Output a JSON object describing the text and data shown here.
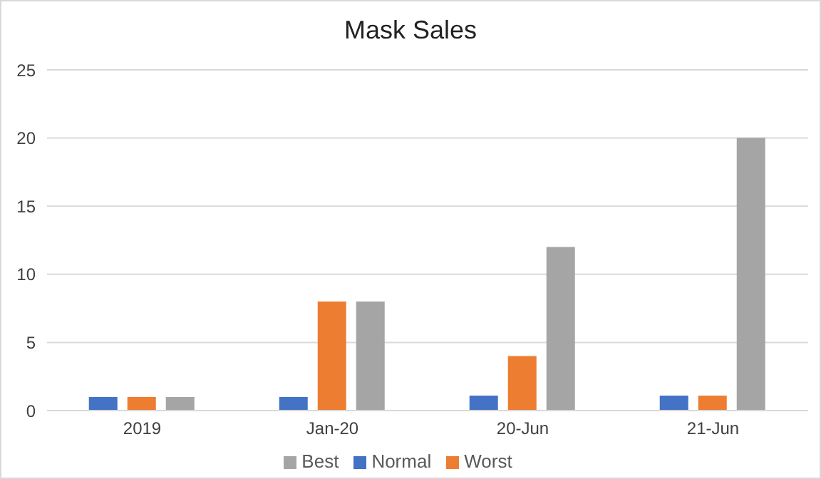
{
  "chart_data": {
    "type": "bar",
    "title": "Mask Sales",
    "categories": [
      "2019",
      "Jan-20",
      "20-Jun",
      "21-Jun"
    ],
    "series": [
      {
        "name": "Normal",
        "color": "#4472c4",
        "values": [
          1,
          1,
          1.1,
          1.1
        ]
      },
      {
        "name": "Worst",
        "color": "#ed7d31",
        "values": [
          1,
          8,
          4,
          1.1
        ]
      },
      {
        "name": "Best",
        "color": "#a5a5a5",
        "values": [
          1,
          8,
          12,
          20
        ]
      }
    ],
    "ylim": [
      0,
      25
    ],
    "yticks": [
      0,
      5,
      10,
      15,
      20,
      25
    ],
    "grid": "y",
    "legend": "bottom"
  }
}
